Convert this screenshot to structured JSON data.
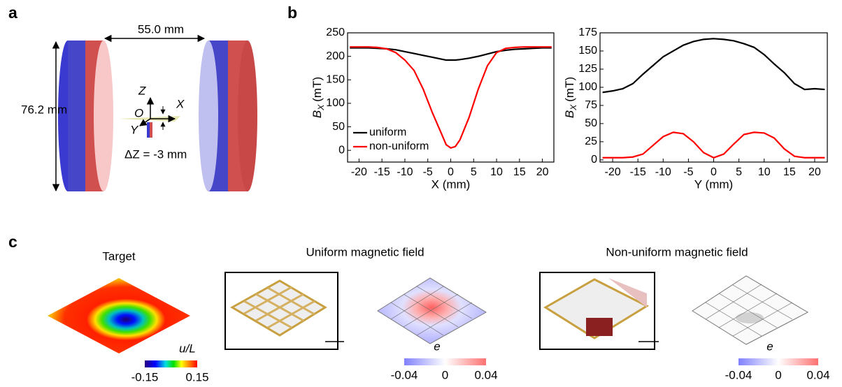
{
  "panel_labels": {
    "a": "a",
    "b": "b",
    "c": "c"
  },
  "diagram": {
    "gap": "55.0 mm",
    "diameter": "76.2 mm",
    "axis_z": "Z",
    "axis_x": "X",
    "axis_y": "Y",
    "origin": "O",
    "offset": "ΔZ = -3 mm"
  },
  "chart_data": [
    {
      "type": "line",
      "ylabel": {
        "symbol": "B",
        "subscript": "X",
        "unit": "(mT)"
      },
      "xlabel": "X (mm)",
      "x": [
        -22,
        -20,
        -18,
        -16,
        -14,
        -12,
        -10,
        -8,
        -6,
        -4,
        -2,
        -1,
        0,
        1,
        2,
        4,
        6,
        8,
        10,
        12,
        14,
        16,
        18,
        20,
        22
      ],
      "series": [
        {
          "name": "uniform",
          "color": "#000000",
          "values": [
            218,
            218,
            218,
            217,
            216,
            214,
            210,
            206,
            202,
            198,
            194,
            192,
            192,
            192,
            193,
            196,
            200,
            205,
            210,
            213,
            215,
            216,
            217,
            218,
            218
          ]
        },
        {
          "name": "non-uniform",
          "color": "#ff0000",
          "values": [
            220,
            220,
            220,
            219,
            216,
            208,
            192,
            170,
            130,
            80,
            35,
            12,
            5,
            8,
            22,
            70,
            130,
            180,
            208,
            217,
            219,
            220,
            220,
            220,
            220
          ]
        }
      ],
      "xlim": [
        -22.5,
        22.5
      ],
      "xticks": [
        -20,
        -15,
        -10,
        -5,
        0,
        5,
        10,
        15,
        20
      ],
      "ylim": [
        -25,
        250
      ],
      "yticks": [
        0,
        50,
        100,
        150,
        200,
        250
      ],
      "legend": "lower left"
    },
    {
      "type": "line",
      "ylabel": {
        "symbol": "B",
        "subscript": "X",
        "unit": "(mT)"
      },
      "xlabel": "Y (mm)",
      "x": [
        -22,
        -20,
        -18,
        -16,
        -14,
        -12,
        -10,
        -8,
        -6,
        -4,
        -2,
        0,
        2,
        4,
        6,
        8,
        10,
        12,
        14,
        16,
        18,
        20,
        22
      ],
      "series": [
        {
          "color": "#000000",
          "values": [
            93,
            95,
            98,
            105,
            118,
            130,
            142,
            150,
            158,
            163,
            166,
            167,
            166,
            164,
            160,
            155,
            145,
            132,
            120,
            105,
            97,
            98,
            97
          ]
        },
        {
          "color": "#ff0000",
          "values": [
            3,
            3,
            3,
            4,
            8,
            20,
            32,
            38,
            36,
            25,
            10,
            3,
            8,
            22,
            35,
            38,
            37,
            30,
            15,
            5,
            3,
            3,
            3
          ]
        }
      ],
      "xlim": [
        -22.5,
        22.5
      ],
      "xticks": [
        -20,
        -15,
        -10,
        -5,
        0,
        5,
        10,
        15,
        20
      ],
      "ylim": [
        -3,
        175
      ],
      "yticks": [
        0,
        25,
        50,
        75,
        100,
        125,
        150,
        175
      ]
    }
  ],
  "panel_c": {
    "target_title": "Target",
    "uniform_title": "Uniform magnetic field",
    "nonuniform_title": "Non-uniform magnetic field",
    "colorbars": [
      {
        "label": "u/L",
        "lim": [
          -0.15,
          0.15
        ],
        "ticks": [
          -0.15,
          0.15
        ]
      },
      {
        "label": "e",
        "lim": [
          -0.04,
          0.04
        ],
        "ticks": [
          -0.04,
          0,
          0.04
        ]
      },
      {
        "label": "e",
        "lim": [
          -0.04,
          0.04
        ],
        "ticks": [
          -0.04,
          0,
          0.04
        ]
      }
    ]
  }
}
